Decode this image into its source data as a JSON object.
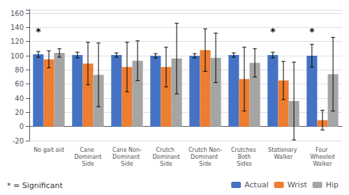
{
  "chart_data": {
    "type": "bar",
    "categories": [
      "No gait aid",
      "Cane Dominant\nSide",
      "Cane Non-\nDominant Side",
      "Crutch Dominant\nSide",
      "Crutch Non-\nDominant Side",
      "Crutches Both\nSides",
      "Stationary Walker",
      "Four Wheeled\nWalker"
    ],
    "series": [
      {
        "name": "Actual",
        "color": "#4472C4",
        "values": [
          102,
          101,
          101,
          100,
          100,
          101,
          101,
          100
        ],
        "errors": [
          4,
          4,
          3,
          3,
          3,
          3,
          4,
          16
        ]
      },
      {
        "name": "Wrist",
        "color": "#ED7D31",
        "values": [
          95,
          89,
          84,
          84,
          108,
          67,
          65,
          9
        ],
        "errors": [
          12,
          30,
          35,
          28,
          30,
          45,
          27,
          14
        ]
      },
      {
        "name": "Hip",
        "color": "#A5A5A5",
        "values": [
          104,
          73,
          93,
          96,
          97,
          90,
          36,
          74
        ],
        "errors": [
          6,
          45,
          28,
          50,
          35,
          20,
          55,
          52
        ]
      }
    ],
    "ylim": [
      -20,
      165
    ],
    "yticks": [
      -20,
      0,
      20,
      40,
      60,
      80,
      100,
      120,
      140,
      160
    ],
    "grid": true,
    "legend": "lower right",
    "annotations": [
      {
        "text": "*",
        "category": "No gait aid",
        "series": "Actual",
        "y": 128
      },
      {
        "text": "*",
        "category": "Stationary Walker",
        "series": "Actual",
        "y": 128
      },
      {
        "text": "*",
        "category": "Four Wheeled\nWalker",
        "series": "Actual",
        "y": 128
      }
    ],
    "footnote": "* = Significant"
  }
}
